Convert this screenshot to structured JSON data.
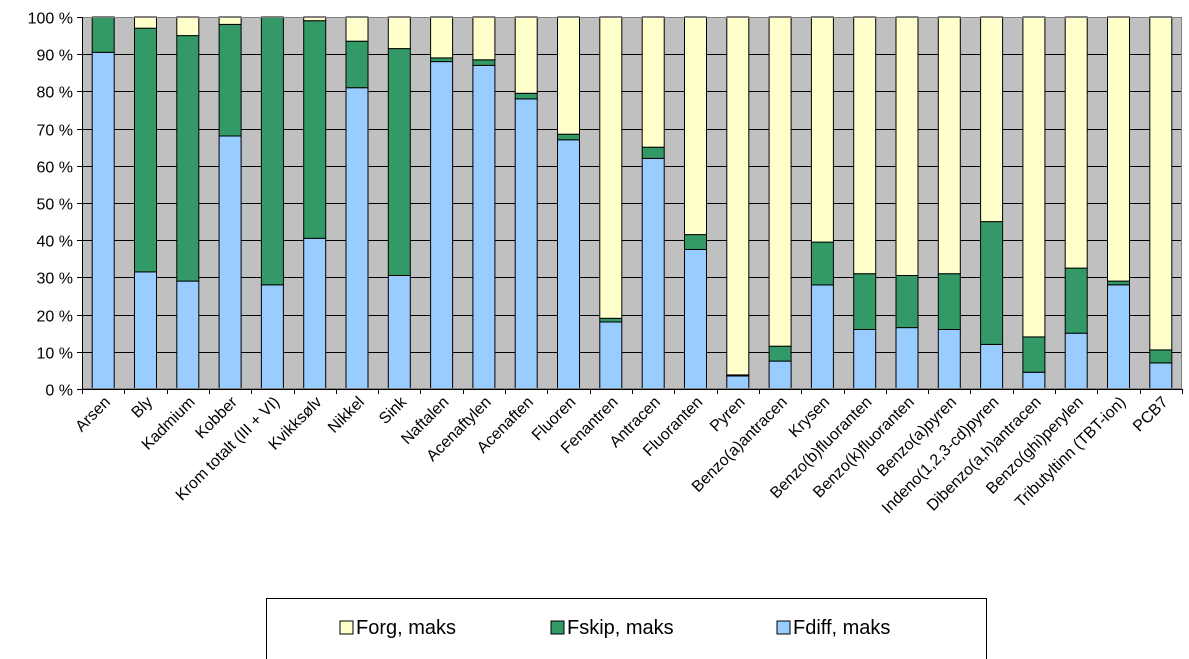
{
  "chart_data": {
    "type": "bar",
    "stacked": true,
    "percent": true,
    "categories": [
      "Arsen",
      "Bly",
      "Kadmium",
      "Kobber",
      "Krom totalt (III + VI)",
      "Kvikksølv",
      "Nikkel",
      "Sink",
      "Naftalen",
      "Acenaftylen",
      "Acenaften",
      "Fluoren",
      "Fenantren",
      "Antracen",
      "Fluoranten",
      "Pyren",
      "Benzo(a)antracen",
      "Krysen",
      "Benzo(b)fluoranten",
      "Benzo(k)fluoranten",
      "Benzo(a)pyren",
      "Indeno(1,2,3-cd)pyren",
      "Dibenzo(a,h)antracen",
      "Benzo(ghi)perylen",
      "Tributyltinn (TBT-ion)",
      "PCB7"
    ],
    "series": [
      {
        "name": "Fdiff, maks",
        "color": "#99ccff",
        "values": [
          90.5,
          31.5,
          29,
          68,
          28,
          40.5,
          81,
          30.5,
          88,
          87,
          78,
          67,
          18,
          62,
          37.5,
          3.5,
          7.5,
          28,
          16,
          16.5,
          16,
          12,
          4.5,
          15,
          28,
          7
        ]
      },
      {
        "name": "Fskip, maks",
        "color": "#339966",
        "values": [
          9.5,
          65.5,
          66,
          30,
          72,
          58.5,
          12.5,
          61,
          1,
          1.5,
          1.5,
          1.5,
          1,
          3,
          4,
          0.3,
          4,
          11.5,
          15,
          14,
          15,
          33,
          9.5,
          17.5,
          1,
          3.5
        ]
      },
      {
        "name": "Forg, maks",
        "color": "#ffffcc",
        "values": [
          0,
          3,
          5,
          2,
          0,
          1,
          6.5,
          8.5,
          11,
          11.5,
          20.5,
          31.5,
          81,
          35,
          58.5,
          96.2,
          88.5,
          60.5,
          69,
          69.5,
          69,
          55,
          86,
          67.5,
          71,
          89.5
        ]
      }
    ],
    "y_ticks": [
      "0 %",
      "10 %",
      "20 %",
      "30 %",
      "40 %",
      "50 %",
      "60 %",
      "70 %",
      "80 %",
      "90 %",
      "100 %"
    ],
    "ylim": [
      0,
      100
    ],
    "plot_background": "#c0c0c0",
    "legend": {
      "position": "bottom",
      "order": [
        "Forg, maks",
        "Fskip, maks",
        "Fdiff, maks"
      ]
    },
    "title": "",
    "xlabel": "",
    "ylabel": ""
  }
}
